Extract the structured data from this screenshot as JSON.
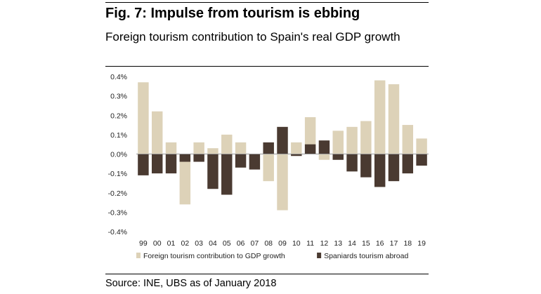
{
  "header": {
    "title": "Fig. 7: Impulse from tourism is ebbing",
    "subtitle": "Foreign tourism contribution to Spain's real GDP growth"
  },
  "footer": {
    "source": "Source: INE, UBS as of January 2018"
  },
  "chart_data": {
    "type": "bar",
    "categories": [
      "99",
      "00",
      "01",
      "02",
      "03",
      "04",
      "05",
      "06",
      "07",
      "08",
      "09",
      "10",
      "11",
      "12",
      "13",
      "14",
      "15",
      "16",
      "17",
      "18",
      "19"
    ],
    "series": [
      {
        "name": "Foreign tourism contribution to GDP growth",
        "color": "#ddd2b8",
        "values": [
          0.37,
          0.22,
          0.06,
          -0.26,
          0.06,
          0.03,
          0.1,
          0.06,
          0.0,
          -0.14,
          -0.29,
          0.06,
          0.19,
          -0.03,
          0.12,
          0.14,
          0.17,
          0.38,
          0.36,
          0.15,
          0.08
        ]
      },
      {
        "name": "Spaniards tourism abroad",
        "color": "#4a3a31",
        "values": [
          -0.11,
          -0.1,
          -0.1,
          -0.04,
          -0.04,
          -0.18,
          -0.21,
          -0.07,
          -0.08,
          0.06,
          0.14,
          -0.01,
          0.05,
          0.07,
          -0.03,
          -0.09,
          -0.12,
          -0.17,
          -0.14,
          -0.1,
          -0.06
        ]
      }
    ],
    "yticks": [
      "0.4%",
      "0.3%",
      "0.2%",
      "0.1%",
      "0.0%",
      "-0.1%",
      "-0.2%",
      "-0.3%",
      "-0.4%"
    ],
    "ylim": [
      -0.4,
      0.4
    ],
    "grid": false,
    "legend": "bottom",
    "title": "Fig. 7: Impulse from tourism is ebbing",
    "subtitle": "Foreign tourism contribution to Spain's real GDP growth",
    "xlabel": "",
    "ylabel": ""
  }
}
